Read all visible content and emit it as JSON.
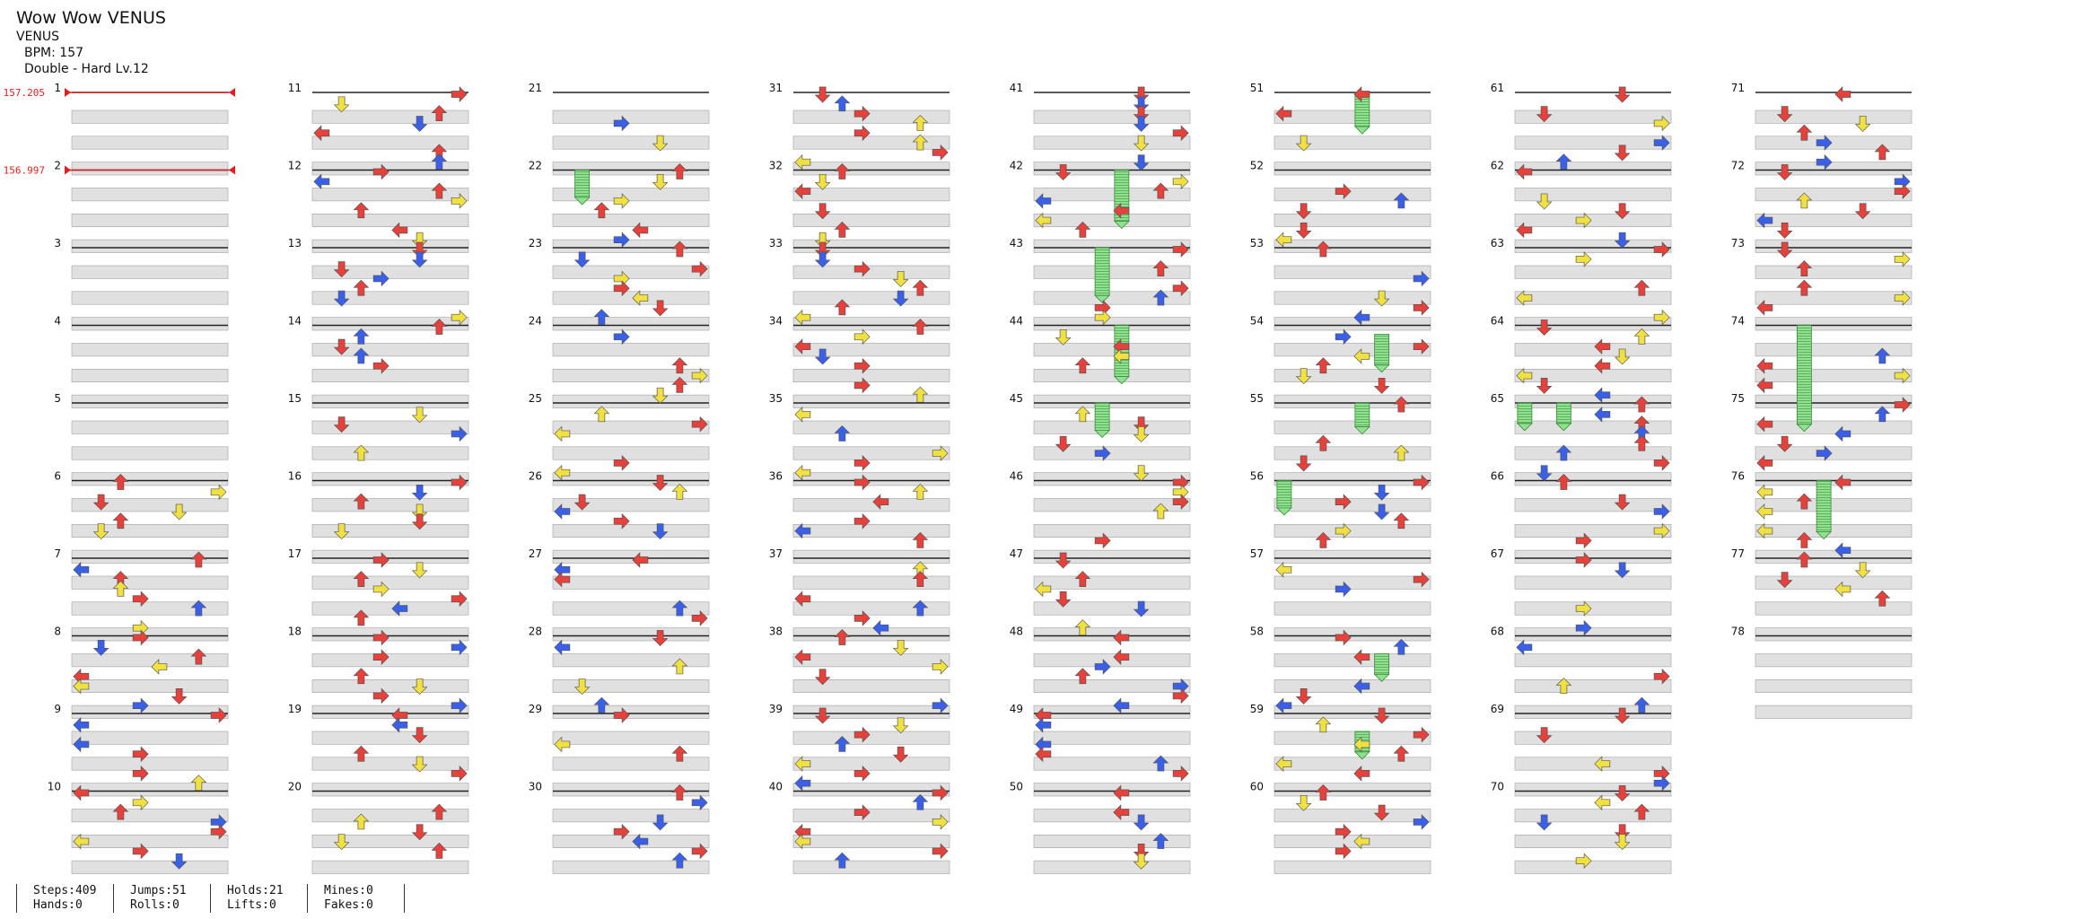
{
  "header": {
    "title": "Wow Wow VENUS",
    "artist": "VENUS",
    "bpm": "BPM: 157",
    "difficulty": "Double - Hard Lv.12"
  },
  "bpm_changes": [
    {
      "measure": 1,
      "value": "157.205"
    },
    {
      "measure": 2,
      "value": "156.997"
    }
  ],
  "measures": [
    1,
    2,
    3,
    4,
    5,
    6,
    7,
    8,
    9,
    10,
    11,
    12,
    13,
    14,
    15,
    16,
    17,
    18,
    19,
    20,
    21,
    22,
    23,
    24,
    25,
    26,
    27,
    28,
    29,
    30,
    31,
    32,
    33,
    34,
    35,
    36,
    37,
    38,
    39,
    40,
    41,
    42,
    43,
    44,
    45,
    46,
    47,
    48,
    49,
    50,
    51,
    52,
    53,
    54,
    55,
    56,
    57,
    58,
    59,
    60,
    61,
    62,
    63,
    64,
    65,
    66,
    67,
    68,
    69,
    70,
    71,
    72,
    73,
    74,
    75,
    76,
    77,
    78
  ],
  "colors": {
    "left": "#e8403a",
    "right": "#e8403a",
    "up": "#e8403a",
    "down": "#e8403a",
    "blue": "#3a5fe8",
    "yellow": "#f0e040",
    "hold": "#8fe08f",
    "bpm_marker": "#e02020"
  },
  "stats": {
    "steps": "Steps:409",
    "hands": "Hands:0",
    "jumps": "Jumps:51",
    "rolls": "Rolls:0",
    "holds": "Holds:21",
    "lifts": "Lifts:0",
    "mines": "Mines:0",
    "fakes": "Fakes:0"
  }
}
